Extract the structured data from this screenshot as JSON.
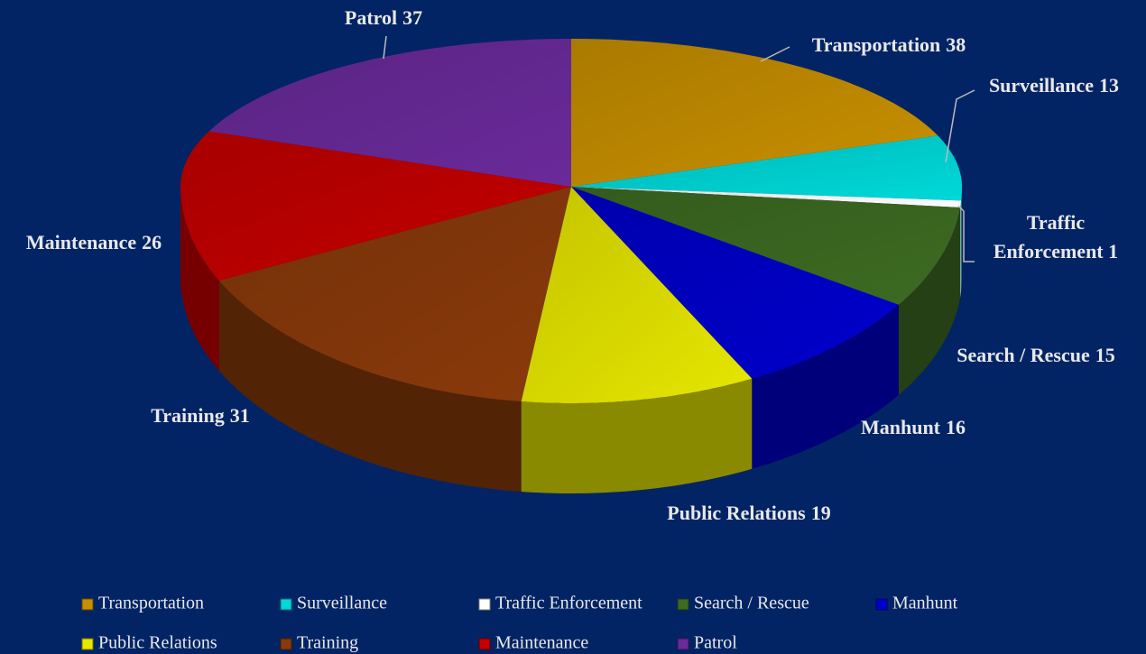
{
  "chart_data": {
    "type": "pie3d",
    "categories": [
      "Transportation",
      "Surveillance",
      "Traffic Enforcement",
      "Search / Rescue",
      "Manhunt",
      "Public Relations",
      "Training",
      "Maintenance",
      "Patrol"
    ],
    "values": [
      38,
      13,
      1,
      15,
      16,
      19,
      31,
      26,
      37
    ],
    "colors": [
      "#c89000",
      "#00d8d8",
      "#ffffff",
      "#3d6b22",
      "#0000cc",
      "#e6e600",
      "#8a3a0a",
      "#c40000",
      "#6a2a9a"
    ],
    "legend": "bottom"
  }
}
